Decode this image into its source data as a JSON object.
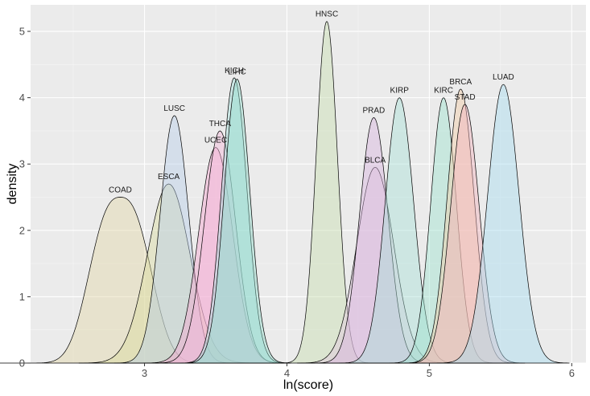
{
  "chart_data": {
    "type": "area",
    "title": "",
    "xlabel": "ln(score)",
    "ylabel": "density",
    "xlim": [
      2.2,
      6.1
    ],
    "ylim": [
      0,
      5.4
    ],
    "x_ticks": [
      3,
      4,
      5,
      6
    ],
    "y_ticks": [
      0,
      1,
      2,
      3,
      4,
      5
    ],
    "grid": true,
    "legend": "none",
    "series": [
      {
        "name": "COAD",
        "mean": 2.83,
        "peak": 2.5,
        "sd": 0.17,
        "shape": "plateau",
        "color": "#e2d6a8"
      },
      {
        "name": "ESCA",
        "mean": 3.17,
        "peak": 2.7,
        "sd": 0.15,
        "color": "#d9dca0"
      },
      {
        "name": "LUSC",
        "mean": 3.21,
        "peak": 3.73,
        "sd": 0.1,
        "color": "#b9cfe8"
      },
      {
        "name": "UCEC",
        "mean": 3.5,
        "peak": 3.25,
        "sd": 0.12,
        "color": "#f4a3cf"
      },
      {
        "name": "THCA",
        "mean": 3.53,
        "peak": 3.5,
        "sd": 0.11,
        "color": "#f3b8d9"
      },
      {
        "name": "KICH",
        "mean": 3.63,
        "peak": 4.3,
        "sd": 0.09,
        "color": "#a3e0dc"
      },
      {
        "name": "LIHC",
        "mean": 3.65,
        "peak": 4.28,
        "sd": 0.09,
        "color": "#92dccb"
      },
      {
        "name": "HNSC",
        "mean": 4.28,
        "peak": 5.15,
        "sd": 0.075,
        "color": "#c8deb0"
      },
      {
        "name": "BLCA",
        "mean": 4.62,
        "peak": 2.95,
        "sd": 0.13,
        "color": "#e2c8e0"
      },
      {
        "name": "PRAD",
        "mean": 4.61,
        "peak": 3.7,
        "sd": 0.1,
        "color": "#d6b4dd"
      },
      {
        "name": "KIRP",
        "mean": 4.79,
        "peak": 4.0,
        "sd": 0.1,
        "color": "#a8e0d6"
      },
      {
        "name": "KIRC",
        "mean": 5.1,
        "peak": 4.0,
        "sd": 0.09,
        "color": "#9ee2ce"
      },
      {
        "name": "BRCA",
        "mean": 5.22,
        "peak": 4.13,
        "sd": 0.095,
        "color": "#f2cca6"
      },
      {
        "name": "STAD",
        "mean": 5.25,
        "peak": 3.9,
        "sd": 0.1,
        "color": "#f2b4bd"
      },
      {
        "name": "LUAD",
        "mean": 5.52,
        "peak": 4.2,
        "sd": 0.11,
        "color": "#a6dcef"
      }
    ]
  },
  "colors": {
    "panel_background": "#ebebeb",
    "grid_major": "#ffffff",
    "grid_minor": "#f5f5f5",
    "curve_outline": "#000000"
  }
}
